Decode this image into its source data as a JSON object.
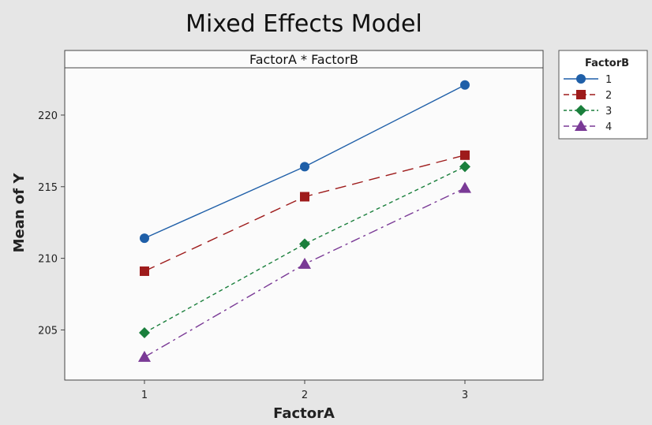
{
  "chart_data": {
    "type": "line",
    "title": "Mixed Effects Model",
    "panel_title": "FactorA * FactorB",
    "xlabel": "FactorA",
    "ylabel": "Mean of Y",
    "categories": [
      "1",
      "2",
      "3"
    ],
    "ylim": [
      201.5,
      223.3
    ],
    "yticks": [
      205,
      210,
      215,
      220
    ],
    "grid": false,
    "legend": {
      "title": "FactorB",
      "placement": "right"
    },
    "series": [
      {
        "name": "1",
        "values": [
          211.4,
          216.4,
          222.1
        ],
        "color": "#1f5fa8",
        "marker": "circle",
        "line": "solid"
      },
      {
        "name": "2",
        "values": [
          209.1,
          214.3,
          217.2
        ],
        "color": "#9e1b1b",
        "marker": "square",
        "line": "long-dash"
      },
      {
        "name": "3",
        "values": [
          204.8,
          211.0,
          216.4
        ],
        "color": "#1a7f3c",
        "marker": "diamond",
        "line": "short-dash"
      },
      {
        "name": "4",
        "values": [
          203.1,
          209.6,
          214.9
        ],
        "color": "#7a3a96",
        "marker": "triangle",
        "line": "dash-dot"
      }
    ]
  }
}
